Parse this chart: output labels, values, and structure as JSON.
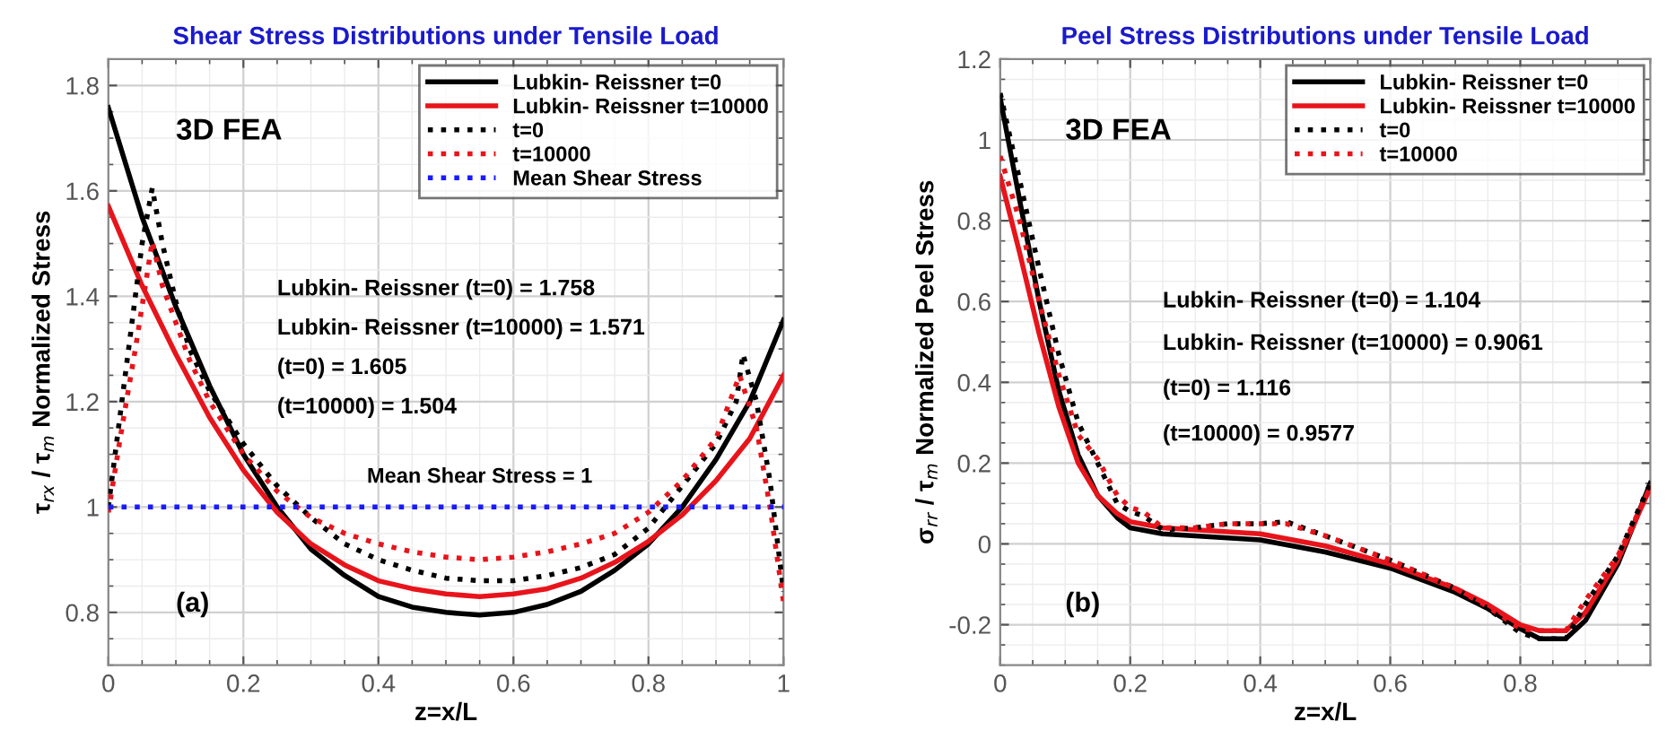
{
  "chart_data": [
    {
      "type": "line",
      "title": "Shear Stress Distributions under Tensile Load",
      "xlabel": "z=x/L",
      "ylabel": "τ$_{rx}$ / τ$_{m}$ Normalized Stress",
      "xlim": [
        0,
        1
      ],
      "ylim": [
        0.7,
        1.85
      ],
      "xticks": [
        0,
        0.2,
        0.4,
        0.6,
        0.8,
        1
      ],
      "yticks": [
        0.8,
        1,
        1.2,
        1.4,
        1.6,
        1.8
      ],
      "grid": true,
      "legend": "top right",
      "annotations": [
        "3D FEA",
        "Lubkin- Reissner (t=0) = 1.758",
        "Lubkin- Reissner (t=10000) = 1.571",
        "(t=0) = 1.605",
        "(t=10000) = 1.504",
        "(a)",
        {
          "text": "Mean Shear Stress = 1",
          "x": 0.55,
          "y": 1
        }
      ],
      "series": [
        {
          "name": "Lubkin- Reissner t=0",
          "color": "#000000",
          "line_style": "solid",
          "x": [
            0,
            0.05,
            0.1,
            0.15,
            0.2,
            0.25,
            0.3,
            0.35,
            0.4,
            0.45,
            0.5,
            0.55,
            0.6,
            0.65,
            0.7,
            0.75,
            0.8,
            0.85,
            0.9,
            0.95,
            1
          ],
          "values": [
            1.758,
            1.55,
            1.38,
            1.23,
            1.1,
            1.0,
            0.92,
            0.87,
            0.83,
            0.81,
            0.8,
            0.795,
            0.8,
            0.815,
            0.84,
            0.88,
            0.93,
            1.0,
            1.09,
            1.2,
            1.355
          ]
        },
        {
          "name": "Lubkin- Reissner t=10000",
          "color": "#e8141b",
          "line_style": "solid",
          "x": [
            0,
            0.05,
            0.1,
            0.15,
            0.2,
            0.25,
            0.3,
            0.35,
            0.4,
            0.45,
            0.5,
            0.55,
            0.6,
            0.65,
            0.7,
            0.75,
            0.8,
            0.85,
            0.9,
            0.95,
            1
          ],
          "values": [
            1.571,
            1.42,
            1.29,
            1.17,
            1.07,
            0.99,
            0.93,
            0.89,
            0.86,
            0.845,
            0.835,
            0.83,
            0.835,
            0.845,
            0.865,
            0.895,
            0.935,
            0.985,
            1.05,
            1.13,
            1.25
          ]
        },
        {
          "name": "t=0",
          "color": "#000000",
          "line_style": "dotted",
          "x": [
            0,
            0.01,
            0.03,
            0.05,
            0.065,
            0.08,
            0.1,
            0.12,
            0.15,
            0.2,
            0.25,
            0.3,
            0.35,
            0.4,
            0.45,
            0.5,
            0.55,
            0.6,
            0.65,
            0.7,
            0.75,
            0.8,
            0.85,
            0.9,
            0.93,
            0.94,
            0.96,
            0.98,
            1
          ],
          "values": [
            1.0,
            1.1,
            1.3,
            1.5,
            1.605,
            1.5,
            1.39,
            1.3,
            1.22,
            1.12,
            1.04,
            0.98,
            0.93,
            0.9,
            0.88,
            0.865,
            0.86,
            0.86,
            0.87,
            0.885,
            0.91,
            0.96,
            1.04,
            1.12,
            1.2,
            1.29,
            1.2,
            1.05,
            0.84
          ]
        },
        {
          "name": "t=10000",
          "color": "#e8141b",
          "line_style": "dotted",
          "x": [
            0,
            0.02,
            0.04,
            0.065,
            0.08,
            0.1,
            0.12,
            0.15,
            0.2,
            0.25,
            0.3,
            0.35,
            0.4,
            0.45,
            0.5,
            0.55,
            0.6,
            0.65,
            0.7,
            0.75,
            0.8,
            0.85,
            0.9,
            0.935,
            0.96,
            0.98,
            1
          ],
          "values": [
            0.99,
            1.15,
            1.3,
            1.504,
            1.42,
            1.35,
            1.28,
            1.2,
            1.1,
            1.03,
            0.98,
            0.95,
            0.93,
            0.915,
            0.905,
            0.9,
            0.905,
            0.915,
            0.93,
            0.95,
            0.99,
            1.05,
            1.13,
            1.25,
            1.15,
            1.0,
            0.82
          ]
        },
        {
          "name": "Mean Shear Stress",
          "color": "#1a1aff",
          "line_style": "dotted",
          "x": [
            0,
            1
          ],
          "values": [
            1,
            1
          ]
        }
      ]
    },
    {
      "type": "line",
      "title": "Peel Stress Distributions under Tensile Load",
      "xlabel": "z=x/L",
      "ylabel": "σ$_{rr}$ / τ$_{m}$ Normalized Peel Stress",
      "xlim": [
        0,
        1
      ],
      "ylim": [
        -0.3,
        1.2
      ],
      "xticks": [
        0,
        0.2,
        0.4,
        0.6,
        0.8
      ],
      "yticks": [
        -0.2,
        0,
        0.2,
        0.4,
        0.6,
        0.8,
        1,
        1.2
      ],
      "grid": true,
      "legend": "top right",
      "annotations": [
        "3D FEA",
        "Lubkin- Reissner (t=0) = 1.104",
        "Lubkin- Reissner (t=10000) = 0.9061",
        "(t=0) = 1.116",
        "(t=10000) = 0.9577",
        "(b)"
      ],
      "series": [
        {
          "name": "Lubkin- Reissner t=0",
          "color": "#000000",
          "line_style": "solid",
          "x": [
            0,
            0.03,
            0.06,
            0.09,
            0.12,
            0.15,
            0.18,
            0.2,
            0.25,
            0.3,
            0.4,
            0.5,
            0.6,
            0.7,
            0.75,
            0.8,
            0.83,
            0.87,
            0.9,
            0.95,
            1
          ],
          "values": [
            1.104,
            0.85,
            0.6,
            0.38,
            0.22,
            0.12,
            0.065,
            0.04,
            0.025,
            0.02,
            0.01,
            -0.02,
            -0.06,
            -0.12,
            -0.16,
            -0.21,
            -0.235,
            -0.235,
            -0.19,
            -0.05,
            0.15
          ]
        },
        {
          "name": "Lubkin- Reissner t=10000",
          "color": "#e8141b",
          "line_style": "solid",
          "x": [
            0,
            0.03,
            0.06,
            0.09,
            0.12,
            0.15,
            0.18,
            0.2,
            0.25,
            0.3,
            0.4,
            0.5,
            0.6,
            0.7,
            0.75,
            0.8,
            0.83,
            0.87,
            0.9,
            0.95,
            1
          ],
          "values": [
            0.91,
            0.72,
            0.52,
            0.34,
            0.2,
            0.12,
            0.075,
            0.055,
            0.04,
            0.035,
            0.025,
            -0.005,
            -0.05,
            -0.11,
            -0.15,
            -0.2,
            -0.215,
            -0.215,
            -0.17,
            -0.04,
            0.14
          ]
        },
        {
          "name": "t=0",
          "color": "#000000",
          "line_style": "dotted",
          "x": [
            0,
            0.03,
            0.06,
            0.09,
            0.12,
            0.15,
            0.18,
            0.2,
            0.22,
            0.25,
            0.3,
            0.35,
            0.4,
            0.44,
            0.5,
            0.6,
            0.7,
            0.75,
            0.8,
            0.83,
            0.87,
            0.9,
            0.95,
            1
          ],
          "values": [
            1.116,
            0.9,
            0.68,
            0.47,
            0.3,
            0.2,
            0.1,
            0.08,
            0.07,
            0.035,
            0.04,
            0.05,
            0.05,
            0.055,
            0.02,
            -0.04,
            -0.11,
            -0.16,
            -0.22,
            -0.235,
            -0.235,
            -0.15,
            -0.03,
            0.15
          ]
        },
        {
          "name": "t=10000",
          "color": "#e8141b",
          "line_style": "dotted",
          "x": [
            0,
            0.03,
            0.06,
            0.09,
            0.12,
            0.15,
            0.18,
            0.2,
            0.22,
            0.25,
            0.3,
            0.35,
            0.4,
            0.44,
            0.5,
            0.6,
            0.7,
            0.75,
            0.8,
            0.83,
            0.87,
            0.9,
            0.95,
            1
          ],
          "values": [
            0.96,
            0.8,
            0.6,
            0.42,
            0.27,
            0.21,
            0.12,
            0.09,
            0.08,
            0.04,
            0.04,
            0.05,
            0.05,
            0.05,
            0.02,
            -0.04,
            -0.11,
            -0.155,
            -0.21,
            -0.215,
            -0.215,
            -0.14,
            -0.03,
            0.14
          ]
        }
      ]
    }
  ]
}
